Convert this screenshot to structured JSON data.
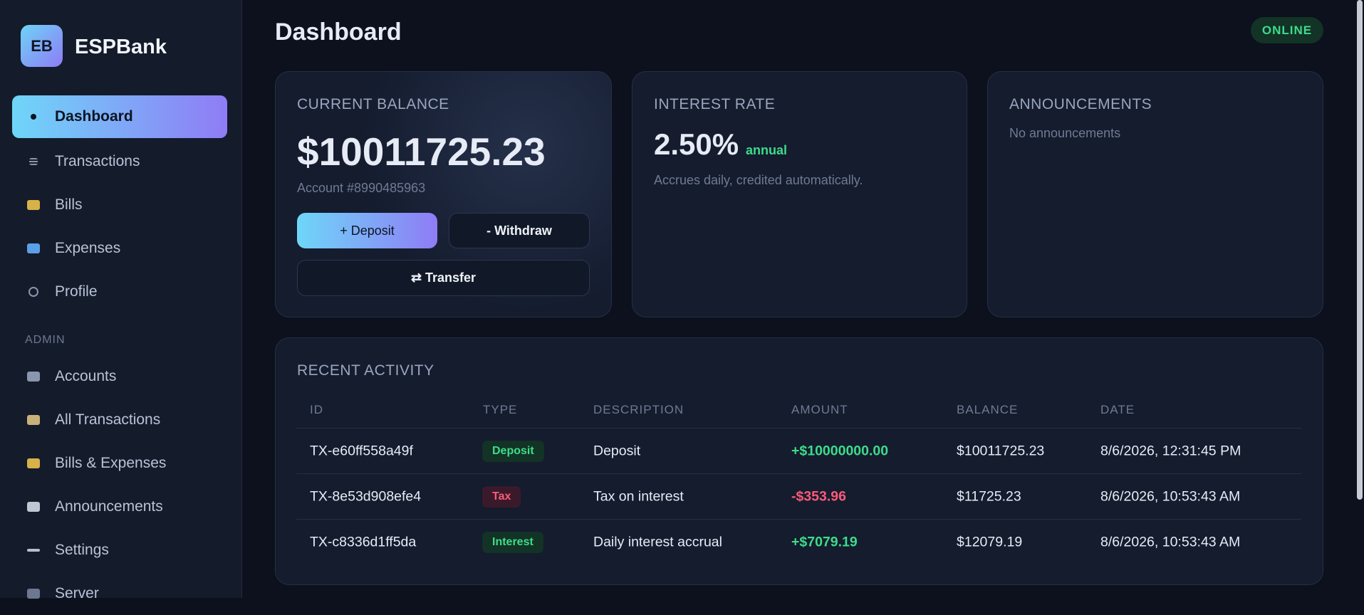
{
  "sidebar": {
    "logo_initials": "EB",
    "brand": "ESPBank",
    "nav": [
      "Dashboard",
      "Transactions",
      "Bills",
      "Expenses",
      "Profile"
    ],
    "admin_label": "ADMIN",
    "admin_nav": [
      "Accounts",
      "All Transactions",
      "Bills & Expenses",
      "Announcements",
      "Settings",
      "Server"
    ]
  },
  "header": {
    "title": "Dashboard",
    "status": "ONLINE"
  },
  "balance_card": {
    "label": "CURRENT BALANCE",
    "amount": "$10011725.23",
    "account": "Account #8990485963",
    "deposit": "+ Deposit",
    "withdraw": "- Withdraw",
    "transfer": "⇄ Transfer"
  },
  "interest_card": {
    "label": "INTEREST RATE",
    "rate": "2.50%",
    "period": "annual",
    "note": "Accrues daily, credited automatically."
  },
  "announcements_card": {
    "label": "ANNOUNCEMENTS",
    "empty": "No announcements"
  },
  "activity": {
    "title": "RECENT ACTIVITY",
    "columns": [
      "ID",
      "TYPE",
      "DESCRIPTION",
      "AMOUNT",
      "BALANCE",
      "DATE"
    ],
    "rows": [
      [
        "TX-e60ff558a49f",
        "Deposit",
        "Deposit",
        "+$10000000.00",
        "$10011725.23",
        "8/6/2026, 12:31:45 PM"
      ],
      [
        "TX-8e53d908efe4",
        "Tax",
        "Tax on interest",
        "-$353.96",
        "$11725.23",
        "8/6/2026, 10:53:43 AM"
      ],
      [
        "TX-c8336d1ff5da",
        "Interest",
        "Daily interest accrual",
        "+$7079.19",
        "$12079.19",
        "8/6/2026, 10:53:43 AM"
      ]
    ]
  }
}
